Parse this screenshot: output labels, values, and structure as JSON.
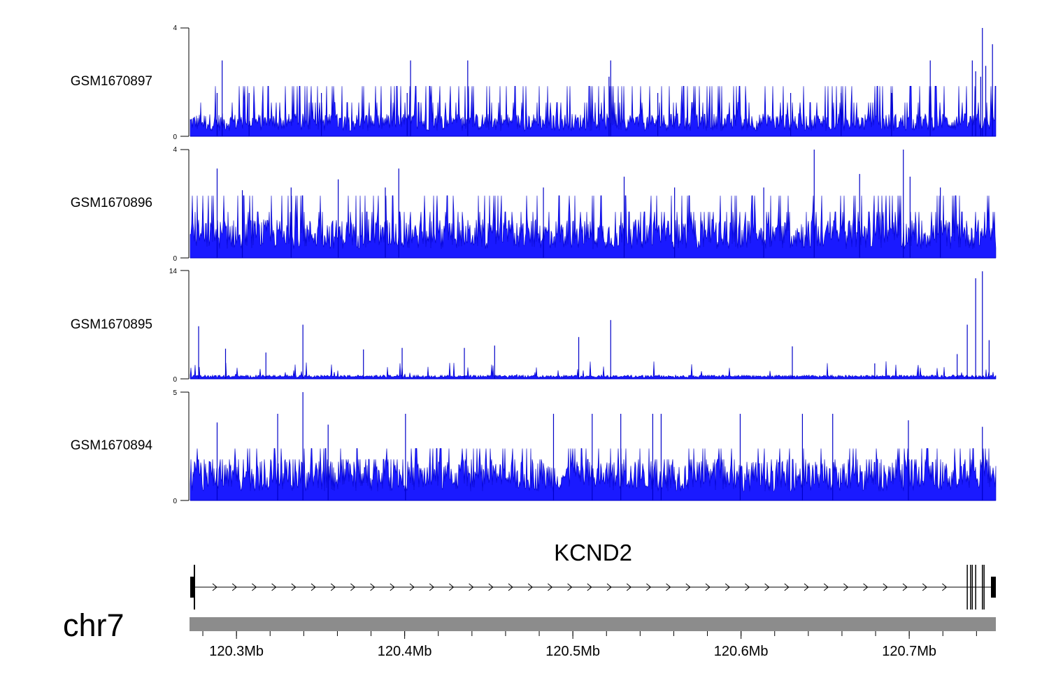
{
  "chart_data": {
    "type": "area",
    "colors": {
      "signal": "#0000c8",
      "signal_fill": "#1a1aff",
      "ideogram": "#8c8c8c",
      "axis": "#000000"
    },
    "tracks": [
      {
        "name": "GSM1670897",
        "ylim": [
          0,
          4
        ],
        "ytick_labels": [
          "4",
          "0"
        ],
        "baseline": 0.65,
        "level_step": 0.6,
        "peaks": [
          [
            120.2915,
            2.8
          ],
          [
            120.2885,
            1.6
          ],
          [
            120.3075,
            1.6
          ],
          [
            120.3505,
            1.6
          ],
          [
            120.4035,
            2.8
          ],
          [
            120.4015,
            1.6
          ],
          [
            120.4375,
            2.8
          ],
          [
            120.5225,
            2.8
          ],
          [
            120.5215,
            2.2
          ],
          [
            120.5505,
            1.6
          ],
          [
            120.6295,
            1.6
          ],
          [
            120.6595,
            1.6
          ],
          [
            120.7125,
            2.8
          ],
          [
            120.7375,
            2.8
          ],
          [
            120.7395,
            2.4
          ],
          [
            120.7435,
            4.0
          ],
          [
            120.7425,
            2.2
          ],
          [
            120.7495,
            3.4
          ],
          [
            120.7455,
            2.6
          ],
          [
            120.6895,
            1.6
          ]
        ]
      },
      {
        "name": "GSM1670896",
        "ylim": [
          0,
          4
        ],
        "ytick_labels": [
          "4",
          "0"
        ],
        "baseline": 1.1,
        "level_step": 0.6,
        "peaks": [
          [
            120.2885,
            3.3
          ],
          [
            120.3035,
            2.5
          ],
          [
            120.3325,
            2.6
          ],
          [
            120.3605,
            2.9
          ],
          [
            120.3965,
            3.3
          ],
          [
            120.3885,
            2.6
          ],
          [
            120.4825,
            2.6
          ],
          [
            120.5305,
            3.0
          ],
          [
            120.5605,
            2.6
          ],
          [
            120.6435,
            4.0
          ],
          [
            120.6965,
            4.0
          ],
          [
            120.7005,
            3.0
          ],
          [
            120.6705,
            3.1
          ],
          [
            120.6135,
            2.6
          ],
          [
            120.7185,
            2.6
          ]
        ]
      },
      {
        "name": "GSM1670895",
        "ylim": [
          0,
          14
        ],
        "ytick_labels": [
          "14",
          "0"
        ],
        "baseline": 0.3,
        "level_step": 0,
        "peaks": [
          [
            120.2775,
            6.8
          ],
          [
            120.2935,
            3.9
          ],
          [
            120.3175,
            3.4
          ],
          [
            120.3395,
            7.0
          ],
          [
            120.3755,
            3.8
          ],
          [
            120.3985,
            4.0
          ],
          [
            120.4355,
            4.0
          ],
          [
            120.4535,
            4.3
          ],
          [
            120.5035,
            5.4
          ],
          [
            120.5225,
            7.6
          ],
          [
            120.6305,
            4.2
          ],
          [
            120.7345,
            7.0
          ],
          [
            120.7395,
            13.0
          ],
          [
            120.7435,
            13.9
          ],
          [
            120.7475,
            5.0
          ],
          [
            120.7285,
            3.2
          ],
          [
            120.6795,
            2.0
          ]
        ]
      },
      {
        "name": "GSM1670894",
        "ylim": [
          0,
          5
        ],
        "ytick_labels": [
          "5",
          "0"
        ],
        "baseline": 1.4,
        "level_step": 0.5,
        "peaks": [
          [
            120.3395,
            5.0
          ],
          [
            120.3245,
            4.0
          ],
          [
            120.4005,
            4.0
          ],
          [
            120.4885,
            4.0
          ],
          [
            120.5115,
            4.0
          ],
          [
            120.5285,
            4.0
          ],
          [
            120.5525,
            4.0
          ],
          [
            120.5475,
            4.0
          ],
          [
            120.5995,
            4.0
          ],
          [
            120.6365,
            4.0
          ],
          [
            120.6545,
            4.0
          ],
          [
            120.6995,
            3.7
          ],
          [
            120.7435,
            3.4
          ],
          [
            120.2885,
            3.6
          ],
          [
            120.3545,
            3.5
          ]
        ]
      }
    ],
    "gene": {
      "name": "KCND2",
      "strand": "+",
      "exons": [
        120.2765,
        120.7345,
        120.7365,
        120.7375,
        120.7395,
        120.7435,
        120.7445,
        120.7465
      ]
    },
    "chromosome": "chr7",
    "x_range": [
      120.2725,
      120.7515
    ],
    "x_unit": "Mb",
    "x_ticks": [
      120.3,
      120.4,
      120.5,
      120.6,
      120.7
    ],
    "x_tick_labels": [
      "120.3Mb",
      "120.4Mb",
      "120.5Mb",
      "120.6Mb",
      "120.7Mb"
    ]
  }
}
